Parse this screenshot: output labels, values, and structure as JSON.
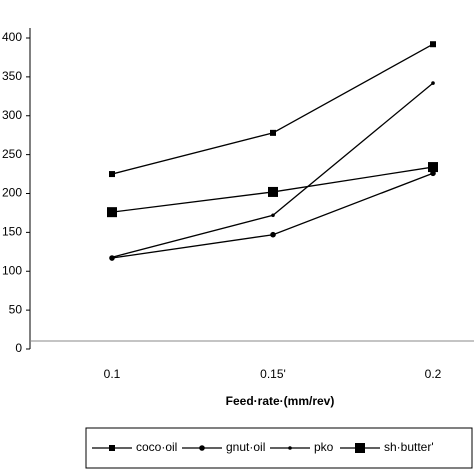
{
  "chart_data": {
    "type": "line",
    "x_label": "Feed·rate·(mm/rev)",
    "categories": [
      "0.1",
      "0.15'",
      "0.2"
    ],
    "series": [
      {
        "name": "coco·oil",
        "color": "#000000",
        "marker": "square",
        "values": [
          225,
          278,
          392
        ]
      },
      {
        "name": "gnut·oil",
        "color": "#000000",
        "marker": "circle",
        "values": [
          117,
          147,
          226
        ]
      },
      {
        "name": "pko",
        "color": "#000000",
        "marker": "dot",
        "values": [
          118,
          172,
          342
        ]
      },
      {
        "name": "sh·butter'",
        "color": "#000000",
        "marker": "big-square",
        "values": [
          176,
          202,
          234
        ]
      }
    ],
    "ylim": [
      0,
      400
    ],
    "yticks": [
      0,
      50,
      100,
      150,
      200,
      250,
      300,
      350,
      400
    ],
    "legend": "bottom"
  }
}
